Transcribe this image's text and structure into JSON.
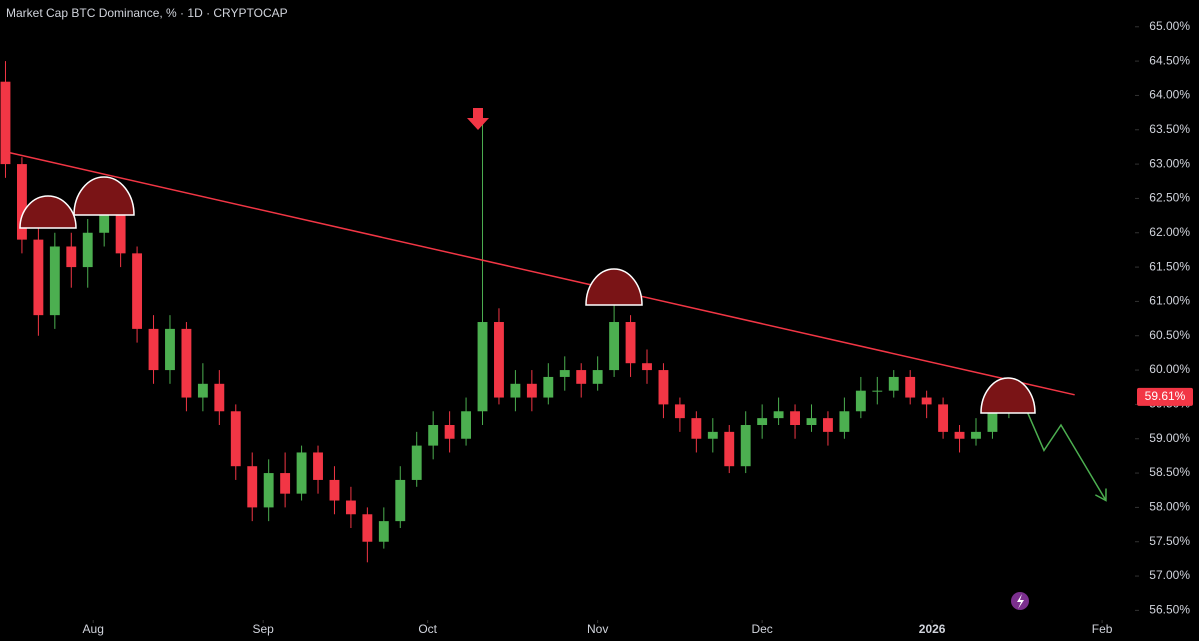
{
  "chart_data": {
    "type": "candlestick",
    "title": "Market Cap BTC Dominance, % · 1D · CRYPTOCAP",
    "up_color": "#4caf50",
    "down_color": "#f23645",
    "x": [
      -16,
      -13,
      -10,
      -7,
      -4,
      -1,
      2,
      5,
      8,
      11,
      14,
      17,
      20,
      23,
      26,
      29,
      32,
      35,
      38,
      41,
      44,
      47,
      50,
      53,
      56,
      59,
      62,
      65,
      68,
      71,
      74,
      77,
      80,
      83,
      86,
      89,
      92,
      95,
      98,
      101,
      104,
      107,
      110,
      113,
      116,
      119,
      122,
      125,
      128,
      131,
      134,
      137,
      140,
      143,
      146,
      149,
      152,
      155,
      158,
      161,
      164,
      167
    ],
    "open": [
      64.2,
      63.0,
      61.9,
      60.8,
      61.8,
      61.5,
      62.0,
      62.4,
      61.7,
      60.6,
      60.0,
      60.6,
      59.6,
      59.8,
      59.4,
      58.6,
      58.0,
      58.5,
      58.2,
      58.8,
      58.4,
      58.1,
      57.9,
      57.5,
      57.8,
      58.4,
      58.9,
      59.2,
      59.0,
      59.4,
      60.7,
      59.6,
      59.8,
      59.6,
      59.9,
      60.0,
      59.8,
      60.0,
      60.7,
      60.1,
      60.0,
      59.5,
      59.3,
      59.0,
      59.1,
      58.6,
      59.2,
      59.3,
      59.4,
      59.2,
      59.3,
      59.1,
      59.4,
      59.7,
      59.7,
      59.9,
      59.6,
      59.5,
      59.1,
      59.0,
      59.1,
      59.4
    ],
    "high": [
      64.5,
      63.1,
      62.1,
      62.0,
      62.0,
      62.2,
      62.6,
      62.5,
      61.8,
      60.8,
      60.8,
      60.7,
      60.1,
      60.0,
      59.5,
      58.8,
      58.7,
      58.8,
      58.9,
      58.9,
      58.6,
      58.3,
      58.0,
      58.0,
      58.6,
      59.1,
      59.4,
      59.4,
      59.6,
      63.6,
      60.9,
      60.0,
      60.0,
      60.1,
      60.2,
      60.1,
      60.2,
      61.0,
      60.8,
      60.3,
      60.1,
      59.6,
      59.4,
      59.3,
      59.2,
      59.4,
      59.5,
      59.6,
      59.5,
      59.5,
      59.4,
      59.6,
      59.9,
      59.9,
      60.0,
      60.0,
      59.7,
      59.6,
      59.2,
      59.3,
      59.5,
      59.8
    ],
    "low": [
      62.8,
      61.7,
      60.5,
      60.6,
      61.2,
      61.2,
      61.8,
      61.5,
      60.4,
      59.8,
      59.8,
      59.4,
      59.4,
      59.2,
      58.4,
      57.8,
      57.8,
      58.0,
      58.1,
      58.2,
      57.9,
      57.7,
      57.2,
      57.4,
      57.7,
      58.3,
      58.7,
      58.8,
      58.9,
      59.2,
      59.5,
      59.4,
      59.4,
      59.5,
      59.7,
      59.6,
      59.7,
      59.9,
      59.9,
      59.8,
      59.3,
      59.1,
      58.8,
      58.8,
      58.5,
      58.5,
      59.0,
      59.2,
      59.0,
      59.1,
      58.9,
      59.0,
      59.3,
      59.5,
      59.6,
      59.5,
      59.3,
      59.0,
      58.8,
      58.9,
      59.0,
      59.3
    ],
    "close": [
      63.0,
      61.9,
      60.8,
      61.8,
      61.5,
      62.0,
      62.4,
      61.7,
      60.6,
      60.0,
      60.6,
      59.6,
      59.8,
      59.4,
      58.6,
      58.0,
      58.5,
      58.2,
      58.8,
      58.4,
      58.1,
      57.9,
      57.5,
      57.8,
      58.4,
      58.9,
      59.2,
      59.0,
      59.4,
      60.7,
      59.6,
      59.8,
      59.6,
      59.9,
      60.0,
      59.8,
      60.0,
      60.7,
      60.1,
      60.0,
      59.5,
      59.3,
      59.0,
      59.1,
      58.6,
      59.2,
      59.3,
      59.4,
      59.2,
      59.3,
      59.1,
      59.4,
      59.7,
      59.7,
      59.9,
      59.6,
      59.5,
      59.1,
      59.0,
      59.1,
      59.4,
      59.61
    ],
    "xlim": [
      -17,
      190
    ],
    "xticks": [
      {
        "value": 0,
        "label": "Aug"
      },
      {
        "value": 31,
        "label": "Sep"
      },
      {
        "value": 61,
        "label": "Oct"
      },
      {
        "value": 92,
        "label": "Nov"
      },
      {
        "value": 122,
        "label": "Dec"
      },
      {
        "value": 153,
        "label": "2026"
      },
      {
        "value": 184,
        "label": "Feb"
      }
    ],
    "ylim": [
      56.36,
      65.39
    ],
    "yticks": [
      {
        "value": 56.5,
        "label": "56.50%"
      },
      {
        "value": 57,
        "label": "57.00%"
      },
      {
        "value": 57.5,
        "label": "57.50%"
      },
      {
        "value": 58,
        "label": "58.00%"
      },
      {
        "value": 58.5,
        "label": "58.50%"
      },
      {
        "value": 59,
        "label": "59.00%"
      },
      {
        "value": 59.5,
        "label": "59.50%"
      },
      {
        "value": 60,
        "label": "60.00%"
      },
      {
        "value": 60.5,
        "label": "60.50%"
      },
      {
        "value": 61,
        "label": "61.00%"
      },
      {
        "value": 61.5,
        "label": "61.50%"
      },
      {
        "value": 62,
        "label": "62.00%"
      },
      {
        "value": 62.5,
        "label": "62.50%"
      },
      {
        "value": 63,
        "label": "63.00%"
      },
      {
        "value": 63.5,
        "label": "63.50%"
      },
      {
        "value": 64,
        "label": "64.00%"
      },
      {
        "value": 64.5,
        "label": "64.50%"
      },
      {
        "value": 65,
        "label": "65.00%"
      }
    ],
    "grid": false,
    "last_price": {
      "value": 59.61,
      "label": "59.61%"
    },
    "trendline": {
      "x": [
        -16,
        179
      ],
      "y": [
        63.18,
        59.64
      ],
      "color": "#f23645"
    },
    "projection": {
      "x": [
        169,
        173.4,
        176.5,
        184.7
      ],
      "y": [
        59.64,
        58.83,
        59.2,
        58.1
      ],
      "color": "#4caf50"
    }
  }
}
